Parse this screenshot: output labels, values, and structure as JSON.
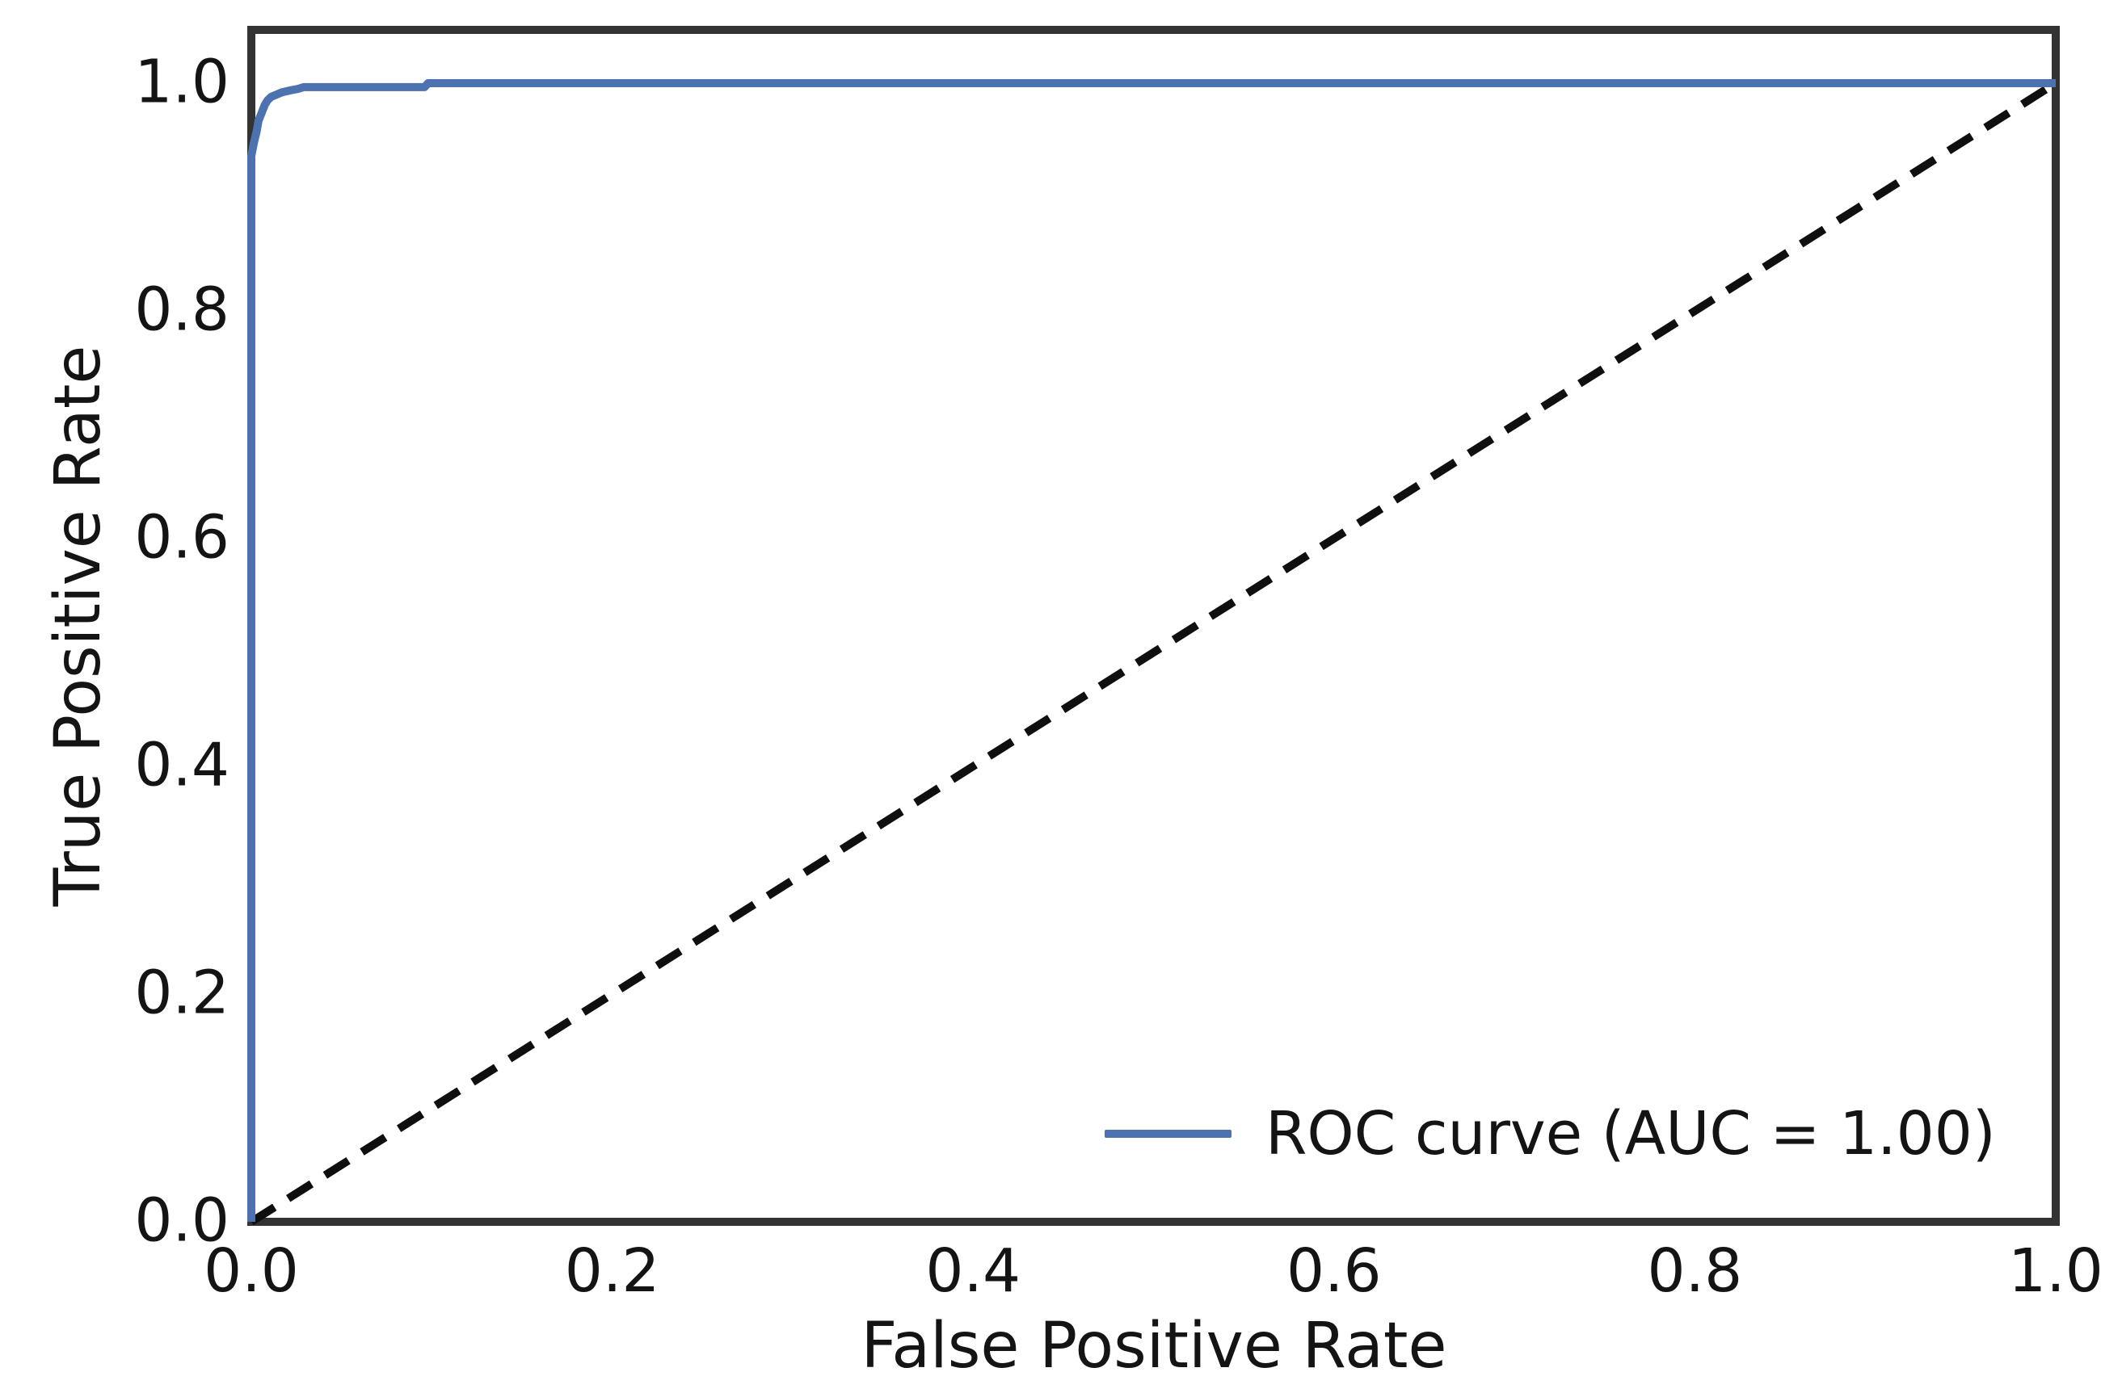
{
  "chart_data": {
    "type": "line",
    "title": "",
    "xlabel": "False Positive Rate",
    "ylabel": "True Positive Rate",
    "xlim": [
      0.0,
      1.0
    ],
    "ylim": [
      0.0,
      1.047
    ],
    "grid": false,
    "xticks": [
      0.0,
      0.2,
      0.4,
      0.6,
      0.8,
      1.0
    ],
    "yticks": [
      0.0,
      0.2,
      0.4,
      0.6,
      0.8,
      1.0
    ],
    "xtick_labels": [
      "0.0",
      "0.2",
      "0.4",
      "0.6",
      "0.8",
      "1.0"
    ],
    "ytick_labels": [
      "0.0",
      "0.2",
      "0.4",
      "0.6",
      "0.8",
      "1.0"
    ],
    "legend": {
      "position": "lower right",
      "entries": [
        {
          "label": "ROC curve (AUC = 1.00)",
          "color": "#4C72B0",
          "style": "solid"
        }
      ]
    },
    "series": [
      {
        "name": "ROC curve (AUC = 1.00)",
        "color": "#4C72B0",
        "style": "solid",
        "points": [
          [
            0.0,
            0.0
          ],
          [
            0.0,
            0.936
          ],
          [
            0.0015,
            0.948
          ],
          [
            0.003,
            0.958
          ],
          [
            0.004,
            0.967
          ],
          [
            0.006,
            0.975
          ],
          [
            0.0075,
            0.981
          ],
          [
            0.009,
            0.985
          ],
          [
            0.011,
            0.988
          ],
          [
            0.014,
            0.99
          ],
          [
            0.017,
            0.992
          ],
          [
            0.021,
            0.9935
          ],
          [
            0.026,
            0.995
          ],
          [
            0.029,
            0.9965
          ],
          [
            0.096,
            0.9965
          ],
          [
            0.098,
            1.0
          ],
          [
            1.0,
            1.0
          ]
        ]
      },
      {
        "name": "chance diagonal",
        "color": "#0f0f0f",
        "style": "dashed",
        "points": [
          [
            0.0,
            0.0
          ],
          [
            1.0,
            1.0
          ]
        ]
      }
    ],
    "colors": {
      "curve": "#4C72B0",
      "diagonal": "#0f0f0f",
      "spine": "#333333",
      "text": "#141414",
      "background": "#ffffff"
    }
  }
}
